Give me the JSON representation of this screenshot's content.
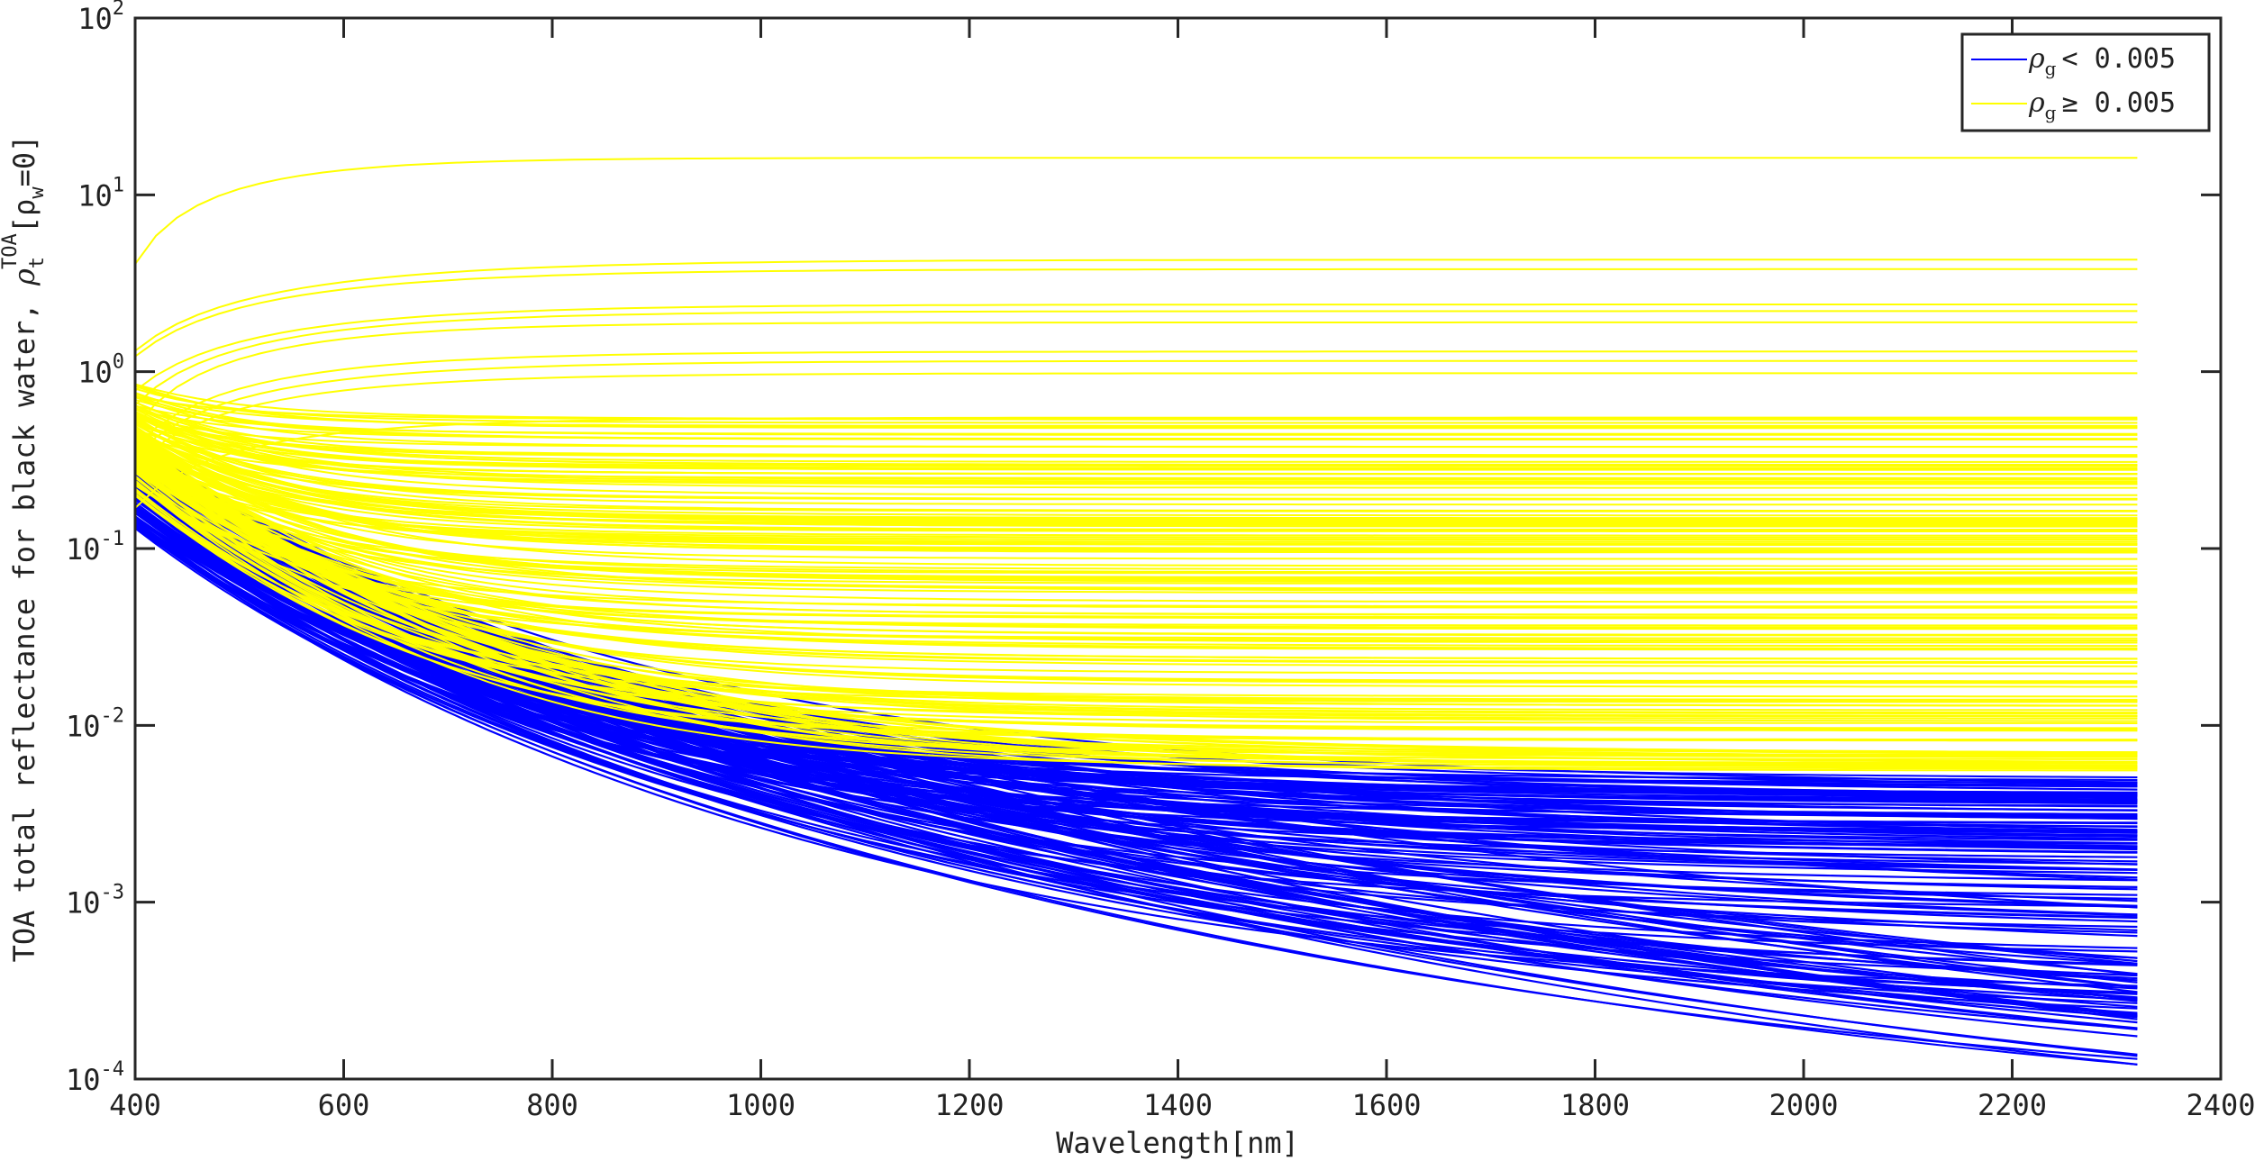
{
  "chart_data": {
    "type": "line",
    "title": "",
    "xlabel": "Wavelength[nm]",
    "ylabel": {
      "prefix": "TOA total reflectance for black water, ",
      "symbol": "ρ",
      "sub": "t",
      "sup": "TOA",
      "bracket": "[ρ",
      "bracket_sub": "w",
      "bracket_tail": "=0]"
    },
    "xlim": [
      400,
      2400
    ],
    "ylim": [
      0.0001,
      100
    ],
    "yscale": "log",
    "grid": false,
    "legend_position": "top-right",
    "x_ticks": [
      "400",
      "600",
      "800",
      "1000",
      "1200",
      "1400",
      "1600",
      "1800",
      "2000",
      "2200",
      "2400"
    ],
    "y_ticks": [
      {
        "base": "10",
        "exp": "-4"
      },
      {
        "base": "10",
        "exp": "-3"
      },
      {
        "base": "10",
        "exp": "-2"
      },
      {
        "base": "10",
        "exp": "-1"
      },
      {
        "base": "10",
        "exp": "0"
      },
      {
        "base": "10",
        "exp": "1"
      },
      {
        "base": "10",
        "exp": "2"
      }
    ],
    "x_range_of_curves": [
      400,
      2320
    ],
    "series": [
      {
        "name": "ρg < 0.005",
        "legend": {
          "symbol": "ρ",
          "sub": "g",
          "text": "< 0.005"
        },
        "color": "#0000ff",
        "example_curves": [
          {
            "x": [
              400,
              600,
              800,
              1000,
              1200,
              1400,
              1600,
              1800,
              2000,
              2200,
              2320
            ],
            "y": [
              0.42,
              0.108,
              0.038,
              0.016,
              0.0075,
              0.0058,
              0.0052,
              0.005,
              0.0049,
              0.0048,
              0.0047
            ]
          },
          {
            "x": [
              400,
              600,
              800,
              1000,
              1200,
              1400,
              1600,
              1800,
              2000,
              2200,
              2320
            ],
            "y": [
              0.13,
              0.028,
              0.0095,
              0.0041,
              0.0021,
              0.0012,
              0.00076,
              0.00047,
              0.00029,
              0.00017,
              0.00011
            ]
          }
        ]
      },
      {
        "name": "ρg ≥ 0.005",
        "legend": {
          "symbol": "ρ",
          "sub": "g",
          "text": "≥ 0.005"
        },
        "color": "#ffff00",
        "example_curves": [
          {
            "x": [
              400,
              600,
              800,
              1000,
              1200,
              1400,
              1600,
              1800,
              2000,
              2200,
              2320
            ],
            "y": [
              4.5,
              13.5,
              15.3,
              15.7,
              15.9,
              16.0,
              16.0,
              16.1,
              16.1,
              16.1,
              16.2
            ]
          },
          {
            "x": [
              400,
              600,
              800,
              1000,
              1200,
              1400,
              1600,
              1800,
              2000,
              2200,
              2320
            ],
            "y": [
              0.42,
              0.108,
              0.038,
              0.016,
              0.0068,
              0.0058,
              0.0056,
              0.0055,
              0.0055,
              0.0055,
              0.0055
            ]
          }
        ]
      }
    ]
  }
}
